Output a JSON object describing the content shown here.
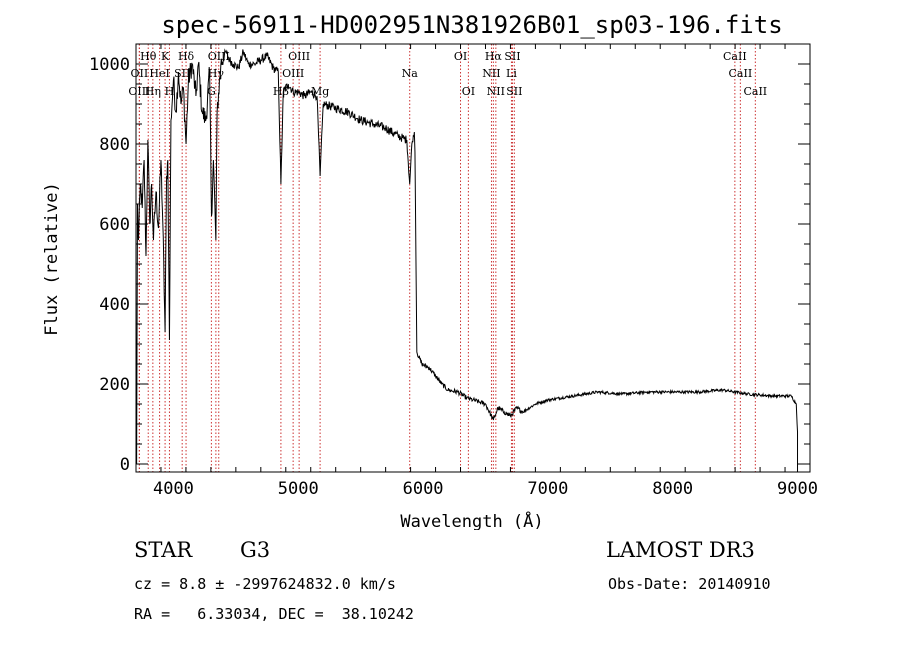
{
  "chart_data": {
    "type": "line",
    "title": "spec-56911-HD002951N381926B01_sp03-196.fits",
    "xlabel": "Wavelength (Å)",
    "ylabel": "Flux (relative)",
    "xlim": [
      3700,
      9100
    ],
    "ylim": [
      -20,
      1050
    ],
    "xticks": [
      4000,
      5000,
      6000,
      7000,
      8000,
      9000
    ],
    "yticks": [
      0,
      200,
      400,
      600,
      800,
      1000
    ],
    "spectrum_anchors": [
      [
        3700,
        320
      ],
      [
        3705,
        0
      ],
      [
        3712,
        650
      ],
      [
        3720,
        560
      ],
      [
        3735,
        700
      ],
      [
        3750,
        640
      ],
      [
        3765,
        760
      ],
      [
        3780,
        520
      ],
      [
        3795,
        810
      ],
      [
        3810,
        600
      ],
      [
        3825,
        700
      ],
      [
        3840,
        560
      ],
      [
        3860,
        680
      ],
      [
        3880,
        590
      ],
      [
        3900,
        760
      ],
      [
        3915,
        600
      ],
      [
        3933,
        330
      ],
      [
        3945,
        720
      ],
      [
        3955,
        760
      ],
      [
        3968,
        310
      ],
      [
        3980,
        860
      ],
      [
        4000,
        960
      ],
      [
        4020,
        880
      ],
      [
        4040,
        980
      ],
      [
        4060,
        900
      ],
      [
        4080,
        940
      ],
      [
        4101,
        800
      ],
      [
        4120,
        960
      ],
      [
        4150,
        1000
      ],
      [
        4180,
        920
      ],
      [
        4200,
        1000
      ],
      [
        4230,
        880
      ],
      [
        4260,
        860
      ],
      [
        4290,
        980
      ],
      [
        4305,
        620
      ],
      [
        4320,
        760
      ],
      [
        4340,
        560
      ],
      [
        4350,
        880
      ],
      [
        4380,
        1000
      ],
      [
        4420,
        1030
      ],
      [
        4450,
        1010
      ],
      [
        4480,
        1000
      ],
      [
        4520,
        990
      ],
      [
        4560,
        1030
      ],
      [
        4600,
        1000
      ],
      [
        4650,
        1000
      ],
      [
        4700,
        1010
      ],
      [
        4750,
        1020
      ],
      [
        4800,
        990
      ],
      [
        4840,
        980
      ],
      [
        4861,
        700
      ],
      [
        4880,
        930
      ],
      [
        4920,
        950
      ],
      [
        4960,
        930
      ],
      [
        5000,
        930
      ],
      [
        5050,
        920
      ],
      [
        5100,
        930
      ],
      [
        5150,
        920
      ],
      [
        5175,
        720
      ],
      [
        5200,
        900
      ],
      [
        5300,
        890
      ],
      [
        5400,
        880
      ],
      [
        5500,
        860
      ],
      [
        5600,
        850
      ],
      [
        5700,
        840
      ],
      [
        5800,
        820
      ],
      [
        5870,
        810
      ],
      [
        5893,
        700
      ],
      [
        5910,
        800
      ],
      [
        5930,
        830
      ],
      [
        5935,
        780
      ],
      [
        5950,
        280
      ],
      [
        5990,
        250
      ],
      [
        6050,
        240
      ],
      [
        6100,
        220
      ],
      [
        6150,
        200
      ],
      [
        6200,
        185
      ],
      [
        6280,
        180
      ],
      [
        6350,
        165
      ],
      [
        6400,
        160
      ],
      [
        6450,
        155
      ],
      [
        6500,
        150
      ],
      [
        6563,
        110
      ],
      [
        6600,
        140
      ],
      [
        6650,
        130
      ],
      [
        6700,
        120
      ],
      [
        6750,
        140
      ],
      [
        6800,
        130
      ],
      [
        6900,
        150
      ],
      [
        7000,
        160
      ],
      [
        7200,
        170
      ],
      [
        7400,
        180
      ],
      [
        7600,
        175
      ],
      [
        7800,
        180
      ],
      [
        8000,
        180
      ],
      [
        8200,
        180
      ],
      [
        8400,
        185
      ],
      [
        8600,
        175
      ],
      [
        8800,
        170
      ],
      [
        8950,
        170
      ],
      [
        8990,
        150
      ],
      [
        9000,
        80
      ]
    ],
    "line_markers": [
      {
        "label": "Hθ",
        "wave": 3798,
        "row": 0
      },
      {
        "label": "OII",
        "wave": 3727,
        "row": 1
      },
      {
        "label": "OIII",
        "wave": 3727,
        "row": 2
      },
      {
        "label": "Hη",
        "wave": 3835,
        "row": 2
      },
      {
        "label": "HeI",
        "wave": 3889,
        "row": 1
      },
      {
        "label": "K",
        "wave": 3933,
        "row": 0
      },
      {
        "label": "H",
        "wave": 3968,
        "row": 2
      },
      {
        "label": "SII",
        "wave": 4070,
        "row": 1
      },
      {
        "label": "Hδ",
        "wave": 4101,
        "row": 0
      },
      {
        "label": "G",
        "wave": 4304,
        "row": 2
      },
      {
        "label": "Hγ",
        "wave": 4340,
        "row": 1
      },
      {
        "label": "OIII",
        "wave": 4363,
        "row": 0
      },
      {
        "label": "Hβ",
        "wave": 4861,
        "row": 2
      },
      {
        "label": "OIII",
        "wave": 4959,
        "row": 1
      },
      {
        "label": "OIII",
        "wave": 5007,
        "row": 0
      },
      {
        "label": "Mg",
        "wave": 5175,
        "row": 2
      },
      {
        "label": "Na",
        "wave": 5893,
        "row": 1
      },
      {
        "label": "OI",
        "wave": 6300,
        "row": 0
      },
      {
        "label": "OI",
        "wave": 6363,
        "row": 2
      },
      {
        "label": "NII",
        "wave": 6548,
        "row": 1
      },
      {
        "label": "Hα",
        "wave": 6563,
        "row": 0
      },
      {
        "label": "NII",
        "wave": 6583,
        "row": 2
      },
      {
        "label": "Li",
        "wave": 6708,
        "row": 1
      },
      {
        "label": "SII",
        "wave": 6716,
        "row": 0
      },
      {
        "label": "SII",
        "wave": 6731,
        "row": 2
      },
      {
        "label": "CaII",
        "wave": 8498,
        "row": 0
      },
      {
        "label": "CaII",
        "wave": 8542,
        "row": 1
      },
      {
        "label": "CaII",
        "wave": 8662,
        "row": 2
      }
    ]
  },
  "info": {
    "object_type": "STAR",
    "subclass": "G3",
    "survey": "LAMOST DR3",
    "cz": "cz = 8.8 ± -2997624832.0 km/s",
    "obs_date": "Obs-Date: 20140910",
    "coords": "RA =   6.33034, DEC =  38.10242"
  },
  "colors": {
    "marker": "#cc3333",
    "spectrum": "#000000",
    "axis": "#000000"
  }
}
